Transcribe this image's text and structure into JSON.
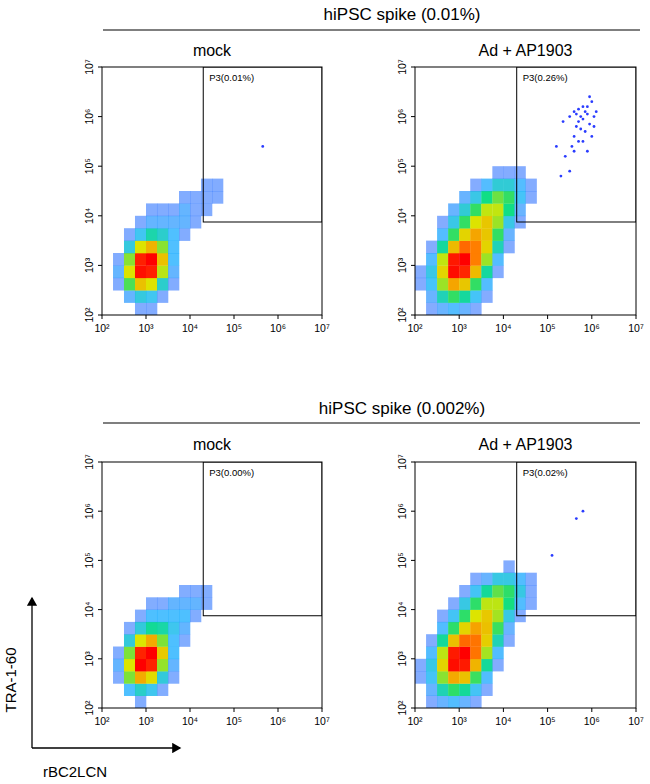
{
  "headers": [
    "hiPSC spike (0.01%)",
    "hiPSC spike (0.002%)"
  ],
  "chart_data": [
    {
      "type": "density",
      "title": "mock",
      "log": true,
      "xlim": [
        100,
        10000000
      ],
      "ylim": [
        100,
        10000000
      ],
      "xticks": [
        {
          "value": 100,
          "label": "10²"
        },
        {
          "value": 1000,
          "label": "10³"
        },
        {
          "value": 10000,
          "label": "10⁴"
        },
        {
          "value": 100000,
          "label": "10⁵"
        },
        {
          "value": 1000000,
          "label": "10⁶"
        },
        {
          "value": 10000000,
          "label": "10⁷"
        }
      ],
      "yticks": [
        {
          "value": 100,
          "label": "10²"
        },
        {
          "value": 1000,
          "label": "10³"
        },
        {
          "value": 10000,
          "label": "10⁴"
        },
        {
          "value": 100000,
          "label": "10⁵"
        },
        {
          "value": 1000000,
          "label": "10⁶"
        },
        {
          "value": 10000000,
          "label": "10⁷"
        }
      ],
      "x_bins": [
        100,
        178,
        316,
        562,
        1000,
        1778,
        3162,
        5623,
        10000,
        17783,
        31623,
        56234
      ],
      "y_bins": [
        100,
        178,
        316,
        562,
        1000,
        1778,
        3162,
        5623,
        10000,
        17783,
        31623,
        56234,
        100000,
        177828,
        316228
      ],
      "cells": [
        [
          0,
          0,
          0,
          1,
          1,
          0,
          0,
          0,
          0,
          0,
          0
        ],
        [
          0,
          0,
          2,
          5,
          4,
          1,
          0,
          0,
          0,
          0,
          0
        ],
        [
          0,
          1,
          15,
          40,
          30,
          6,
          1,
          0,
          0,
          0,
          0
        ],
        [
          0,
          2,
          30,
          120,
          110,
          25,
          2,
          0,
          0,
          0,
          0
        ],
        [
          0,
          1,
          20,
          110,
          130,
          40,
          3,
          0,
          0,
          0,
          0
        ],
        [
          0,
          0,
          5,
          30,
          45,
          20,
          3,
          0,
          0,
          0,
          0
        ],
        [
          0,
          0,
          1,
          4,
          8,
          6,
          3,
          1,
          0,
          0,
          0
        ],
        [
          0,
          0,
          0,
          1,
          2,
          2,
          2,
          2,
          1,
          0,
          0
        ],
        [
          0,
          0,
          0,
          0,
          1,
          1,
          1,
          2,
          1,
          1,
          0
        ],
        [
          0,
          0,
          0,
          0,
          0,
          0,
          0,
          1,
          1,
          1,
          1
        ],
        [
          0,
          0,
          0,
          0,
          0,
          0,
          0,
          0,
          0,
          1,
          1
        ],
        [
          0,
          0,
          0,
          0,
          0,
          0,
          0,
          0,
          0,
          0,
          0
        ],
        [
          0,
          0,
          0,
          0,
          0,
          0,
          0,
          0,
          0,
          0,
          0
        ],
        [
          0,
          0,
          0,
          0,
          0,
          0,
          0,
          0,
          0,
          0,
          0
        ]
      ],
      "x": [
        450000
      ],
      "values": [
        250000
      ],
      "gate": {
        "label": "P3(0.01%)",
        "x": [
          20000,
          10000000
        ],
        "y": [
          7500,
          10000000
        ]
      }
    },
    {
      "type": "density",
      "title": "Ad + AP1903",
      "log": true,
      "xlim": [
        100,
        10000000
      ],
      "ylim": [
        100,
        10000000
      ],
      "xticks": [
        {
          "value": 100,
          "label": "10²"
        },
        {
          "value": 1000,
          "label": "10³"
        },
        {
          "value": 10000,
          "label": "10⁴"
        },
        {
          "value": 100000,
          "label": "10⁵"
        },
        {
          "value": 1000000,
          "label": "10⁶"
        },
        {
          "value": 10000000,
          "label": "10⁷"
        }
      ],
      "yticks": [
        {
          "value": 100,
          "label": "10²"
        },
        {
          "value": 1000,
          "label": "10³"
        },
        {
          "value": 10000,
          "label": "10⁴"
        },
        {
          "value": 100000,
          "label": "10⁵"
        },
        {
          "value": 1000000,
          "label": "10⁶"
        },
        {
          "value": 10000000,
          "label": "10⁷"
        }
      ],
      "x_bins": [
        100,
        178,
        316,
        562,
        1000,
        1778,
        3162,
        5623,
        10000,
        17783,
        31623,
        56234
      ],
      "y_bins": [
        100,
        178,
        316,
        562,
        1000,
        1778,
        3162,
        5623,
        10000,
        17783,
        31623,
        56234,
        100000,
        177828,
        316228
      ],
      "cells": [
        [
          0,
          1,
          2,
          3,
          2,
          1,
          0,
          0,
          0,
          0,
          0
        ],
        [
          0,
          2,
          8,
          15,
          10,
          4,
          1,
          0,
          0,
          0,
          0
        ],
        [
          1,
          4,
          25,
          60,
          45,
          15,
          3,
          0,
          0,
          0,
          0
        ],
        [
          1,
          5,
          40,
          150,
          130,
          50,
          10,
          1,
          0,
          0,
          0
        ],
        [
          0,
          3,
          30,
          140,
          160,
          80,
          25,
          3,
          0,
          0,
          0
        ],
        [
          0,
          1,
          10,
          50,
          90,
          80,
          40,
          8,
          1,
          0,
          0
        ],
        [
          0,
          0,
          3,
          15,
          40,
          60,
          45,
          15,
          2,
          0,
          0
        ],
        [
          0,
          0,
          1,
          5,
          15,
          35,
          45,
          25,
          5,
          1,
          0
        ],
        [
          0,
          0,
          0,
          2,
          6,
          15,
          30,
          30,
          12,
          2,
          0
        ],
        [
          0,
          0,
          0,
          0,
          2,
          5,
          12,
          20,
          15,
          4,
          1
        ],
        [
          0,
          0,
          0,
          0,
          0,
          1,
          3,
          6,
          6,
          3,
          1
        ],
        [
          0,
          0,
          0,
          0,
          0,
          0,
          0,
          1,
          1,
          1,
          0
        ],
        [
          0,
          0,
          0,
          0,
          0,
          0,
          0,
          0,
          0,
          0,
          0
        ],
        [
          0,
          0,
          0,
          0,
          0,
          0,
          0,
          0,
          0,
          0,
          0
        ]
      ],
      "x": [
        316000,
        398000,
        501000,
        631000,
        447000,
        562000,
        794000,
        1000000,
        708000,
        501000,
        355000,
        891000,
        1122000,
        398000,
        631000,
        794000,
        1259000,
        251000,
        316000,
        200000,
        501000,
        631000,
        1000000,
        447000,
        562000,
        158000,
        891000,
        398000,
        1122000,
        708000,
        224000,
        794000
      ],
      "values": [
        1000000,
        1259000,
        794000,
        1585000,
        631000,
        1000000,
        1122000,
        1995000,
        501000,
        316000,
        251000,
        708000,
        1000000,
        398000,
        891000,
        1585000,
        1259000,
        158000,
        79400,
        63100,
        1413000,
        316000,
        398000,
        1122000,
        562000,
        251000,
        2512000,
        200000,
        631000,
        1259000,
        794000,
        200000
      ],
      "gate": {
        "label": "P3(0.26%)",
        "x": [
          20000,
          10000000
        ],
        "y": [
          7500,
          10000000
        ]
      }
    },
    {
      "type": "density",
      "title": "mock",
      "log": true,
      "x_label": "rBC2LCN",
      "y_label": "TRA-1-60",
      "xlim": [
        100,
        10000000
      ],
      "ylim": [
        100,
        10000000
      ],
      "xticks": [
        {
          "value": 100,
          "label": "10²"
        },
        {
          "value": 1000,
          "label": "10³"
        },
        {
          "value": 10000,
          "label": "10⁴"
        },
        {
          "value": 100000,
          "label": "10⁵"
        },
        {
          "value": 1000000,
          "label": "10⁶"
        },
        {
          "value": 10000000,
          "label": "10⁷"
        }
      ],
      "yticks": [
        {
          "value": 100,
          "label": "10²"
        },
        {
          "value": 1000,
          "label": "10³"
        },
        {
          "value": 10000,
          "label": "10⁴"
        },
        {
          "value": 100000,
          "label": "10⁵"
        },
        {
          "value": 1000000,
          "label": "10⁶"
        },
        {
          "value": 10000000,
          "label": "10⁷"
        }
      ],
      "x_bins": [
        100,
        178,
        316,
        562,
        1000,
        1778,
        3162,
        5623,
        10000,
        17783,
        31623,
        56234
      ],
      "y_bins": [
        100,
        178,
        316,
        562,
        1000,
        1778,
        3162,
        5623,
        10000,
        17783,
        31623,
        56234,
        100000,
        177828,
        316228
      ],
      "cells": [
        [
          0,
          0,
          0,
          1,
          0,
          0,
          0,
          0,
          0,
          0,
          0
        ],
        [
          0,
          0,
          3,
          6,
          4,
          1,
          0,
          0,
          0,
          0,
          0
        ],
        [
          0,
          1,
          18,
          45,
          30,
          5,
          1,
          0,
          0,
          0,
          0
        ],
        [
          0,
          2,
          28,
          120,
          100,
          20,
          2,
          0,
          0,
          0,
          0
        ],
        [
          0,
          1,
          18,
          100,
          120,
          35,
          3,
          0,
          0,
          0,
          0
        ],
        [
          0,
          0,
          5,
          28,
          45,
          18,
          3,
          1,
          0,
          0,
          0
        ],
        [
          0,
          0,
          1,
          5,
          9,
          8,
          4,
          2,
          0,
          0,
          0
        ],
        [
          0,
          0,
          0,
          1,
          3,
          3,
          3,
          3,
          1,
          0,
          0
        ],
        [
          0,
          0,
          0,
          0,
          1,
          1,
          2,
          2,
          2,
          1,
          0
        ],
        [
          0,
          0,
          0,
          0,
          0,
          0,
          0,
          1,
          1,
          1,
          0
        ],
        [
          0,
          0,
          0,
          0,
          0,
          0,
          0,
          0,
          0,
          0,
          0
        ],
        [
          0,
          0,
          0,
          0,
          0,
          0,
          0,
          0,
          0,
          0,
          0
        ],
        [
          0,
          0,
          0,
          0,
          0,
          0,
          0,
          0,
          0,
          0,
          0
        ],
        [
          0,
          0,
          0,
          0,
          0,
          0,
          0,
          0,
          0,
          0,
          0
        ]
      ],
      "x": [],
      "values": [],
      "gate": {
        "label": "P3(0.00%)",
        "x": [
          20000,
          10000000
        ],
        "y": [
          7500,
          10000000
        ]
      }
    },
    {
      "type": "density",
      "title": "Ad + AP1903",
      "log": true,
      "xlim": [
        100,
        10000000
      ],
      "ylim": [
        100,
        10000000
      ],
      "xticks": [
        {
          "value": 100,
          "label": "10²"
        },
        {
          "value": 1000,
          "label": "10³"
        },
        {
          "value": 10000,
          "label": "10⁴"
        },
        {
          "value": 100000,
          "label": "10⁵"
        },
        {
          "value": 1000000,
          "label": "10⁶"
        },
        {
          "value": 10000000,
          "label": "10⁷"
        }
      ],
      "yticks": [
        {
          "value": 100,
          "label": "10²"
        },
        {
          "value": 1000,
          "label": "10³"
        },
        {
          "value": 10000,
          "label": "10⁴"
        },
        {
          "value": 100000,
          "label": "10⁵"
        },
        {
          "value": 1000000,
          "label": "10⁶"
        },
        {
          "value": 10000000,
          "label": "10⁷"
        }
      ],
      "x_bins": [
        100,
        178,
        316,
        562,
        1000,
        1778,
        3162,
        5623,
        10000,
        17783,
        31623,
        56234
      ],
      "y_bins": [
        100,
        178,
        316,
        562,
        1000,
        1778,
        3162,
        5623,
        10000,
        17783,
        31623,
        56234,
        100000,
        177828,
        316228
      ],
      "cells": [
        [
          0,
          1,
          2,
          3,
          2,
          1,
          0,
          0,
          0,
          0,
          0
        ],
        [
          0,
          2,
          8,
          14,
          10,
          4,
          1,
          0,
          0,
          0,
          0
        ],
        [
          1,
          4,
          22,
          55,
          45,
          15,
          3,
          0,
          0,
          0,
          0
        ],
        [
          1,
          5,
          38,
          140,
          130,
          50,
          10,
          1,
          0,
          0,
          0
        ],
        [
          0,
          3,
          28,
          130,
          150,
          80,
          25,
          3,
          0,
          0,
          0
        ],
        [
          0,
          1,
          10,
          45,
          85,
          80,
          40,
          8,
          1,
          0,
          0
        ],
        [
          0,
          0,
          3,
          14,
          38,
          58,
          45,
          15,
          2,
          0,
          0
        ],
        [
          0,
          0,
          1,
          4,
          14,
          33,
          42,
          25,
          5,
          1,
          0
        ],
        [
          0,
          0,
          0,
          1,
          5,
          14,
          28,
          28,
          12,
          3,
          1
        ],
        [
          0,
          0,
          0,
          0,
          1,
          4,
          10,
          18,
          14,
          5,
          1
        ],
        [
          0,
          0,
          0,
          0,
          0,
          1,
          2,
          5,
          5,
          3,
          1
        ],
        [
          0,
          0,
          0,
          0,
          0,
          0,
          0,
          0,
          1,
          0,
          0
        ],
        [
          0,
          0,
          0,
          0,
          0,
          0,
          0,
          0,
          0,
          0,
          0
        ],
        [
          0,
          0,
          0,
          0,
          0,
          0,
          0,
          0,
          0,
          0,
          0
        ]
      ],
      "x": [
        447000,
        631000,
        126000
      ],
      "values": [
        708000,
        1000000,
        126000
      ],
      "gate": {
        "label": "P3(0.02%)",
        "x": [
          20000,
          10000000
        ],
        "y": [
          7500,
          10000000
        ]
      }
    }
  ]
}
